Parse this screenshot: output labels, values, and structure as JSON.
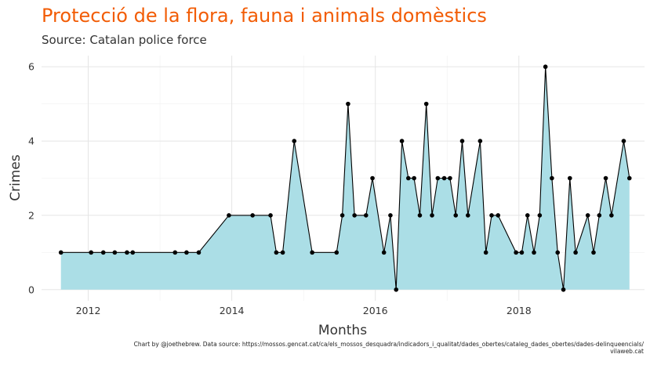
{
  "title": "Protecció de la flora, fauna i animals domèstics",
  "subtitle": "Source: Catalan police force",
  "caption_line1": "Chart by @joethebrew. Data source: https://mossos.gencat.cat/ca/els_mossos_desquadra/indicadors_i_qualitat/dades_obertes/cataleg_dades_obertes/dades-delinqueencials/",
  "caption_line2": "vilaweb.cat",
  "colors": {
    "title": "#f25c05",
    "area_fill": "#abdee6",
    "line": "#000000",
    "grid": "#e5e5e5"
  },
  "chart_data": {
    "type": "area",
    "xlabel": "Months",
    "ylabel": "Crimes",
    "xlim": [
      2011.35,
      2019.75
    ],
    "ylim": [
      -0.3,
      6.3
    ],
    "xticks": [
      2012,
      2014,
      2016,
      2018
    ],
    "yticks": [
      0,
      2,
      4,
      6
    ],
    "grid": true,
    "points": [
      {
        "x": 2011.62,
        "y": 1
      },
      {
        "x": 2012.04,
        "y": 1
      },
      {
        "x": 2012.21,
        "y": 1
      },
      {
        "x": 2012.37,
        "y": 1
      },
      {
        "x": 2012.54,
        "y": 1
      },
      {
        "x": 2012.62,
        "y": 1
      },
      {
        "x": 2013.21,
        "y": 1
      },
      {
        "x": 2013.37,
        "y": 1
      },
      {
        "x": 2013.54,
        "y": 1
      },
      {
        "x": 2013.96,
        "y": 2
      },
      {
        "x": 2014.29,
        "y": 2
      },
      {
        "x": 2014.54,
        "y": 2
      },
      {
        "x": 2014.62,
        "y": 1
      },
      {
        "x": 2014.71,
        "y": 1
      },
      {
        "x": 2014.87,
        "y": 4
      },
      {
        "x": 2015.12,
        "y": 1
      },
      {
        "x": 2015.46,
        "y": 1
      },
      {
        "x": 2015.54,
        "y": 2
      },
      {
        "x": 2015.62,
        "y": 5
      },
      {
        "x": 2015.71,
        "y": 2
      },
      {
        "x": 2015.87,
        "y": 2
      },
      {
        "x": 2015.96,
        "y": 3
      },
      {
        "x": 2016.12,
        "y": 1
      },
      {
        "x": 2016.21,
        "y": 2
      },
      {
        "x": 2016.29,
        "y": 0
      },
      {
        "x": 2016.37,
        "y": 4
      },
      {
        "x": 2016.46,
        "y": 3
      },
      {
        "x": 2016.54,
        "y": 3
      },
      {
        "x": 2016.62,
        "y": 2
      },
      {
        "x": 2016.71,
        "y": 5
      },
      {
        "x": 2016.79,
        "y": 2
      },
      {
        "x": 2016.87,
        "y": 3
      },
      {
        "x": 2016.96,
        "y": 3
      },
      {
        "x": 2017.04,
        "y": 3
      },
      {
        "x": 2017.12,
        "y": 2
      },
      {
        "x": 2017.21,
        "y": 4
      },
      {
        "x": 2017.29,
        "y": 2
      },
      {
        "x": 2017.46,
        "y": 4
      },
      {
        "x": 2017.54,
        "y": 1
      },
      {
        "x": 2017.62,
        "y": 2
      },
      {
        "x": 2017.71,
        "y": 2
      },
      {
        "x": 2017.96,
        "y": 1
      },
      {
        "x": 2018.04,
        "y": 1
      },
      {
        "x": 2018.12,
        "y": 2
      },
      {
        "x": 2018.21,
        "y": 1
      },
      {
        "x": 2018.29,
        "y": 2
      },
      {
        "x": 2018.37,
        "y": 6
      },
      {
        "x": 2018.46,
        "y": 3
      },
      {
        "x": 2018.54,
        "y": 1
      },
      {
        "x": 2018.62,
        "y": 0
      },
      {
        "x": 2018.71,
        "y": 3
      },
      {
        "x": 2018.79,
        "y": 1
      },
      {
        "x": 2018.96,
        "y": 2
      },
      {
        "x": 2019.04,
        "y": 1
      },
      {
        "x": 2019.12,
        "y": 2
      },
      {
        "x": 2019.21,
        "y": 3
      },
      {
        "x": 2019.29,
        "y": 2
      },
      {
        "x": 2019.46,
        "y": 4
      },
      {
        "x": 2019.54,
        "y": 3
      }
    ]
  }
}
